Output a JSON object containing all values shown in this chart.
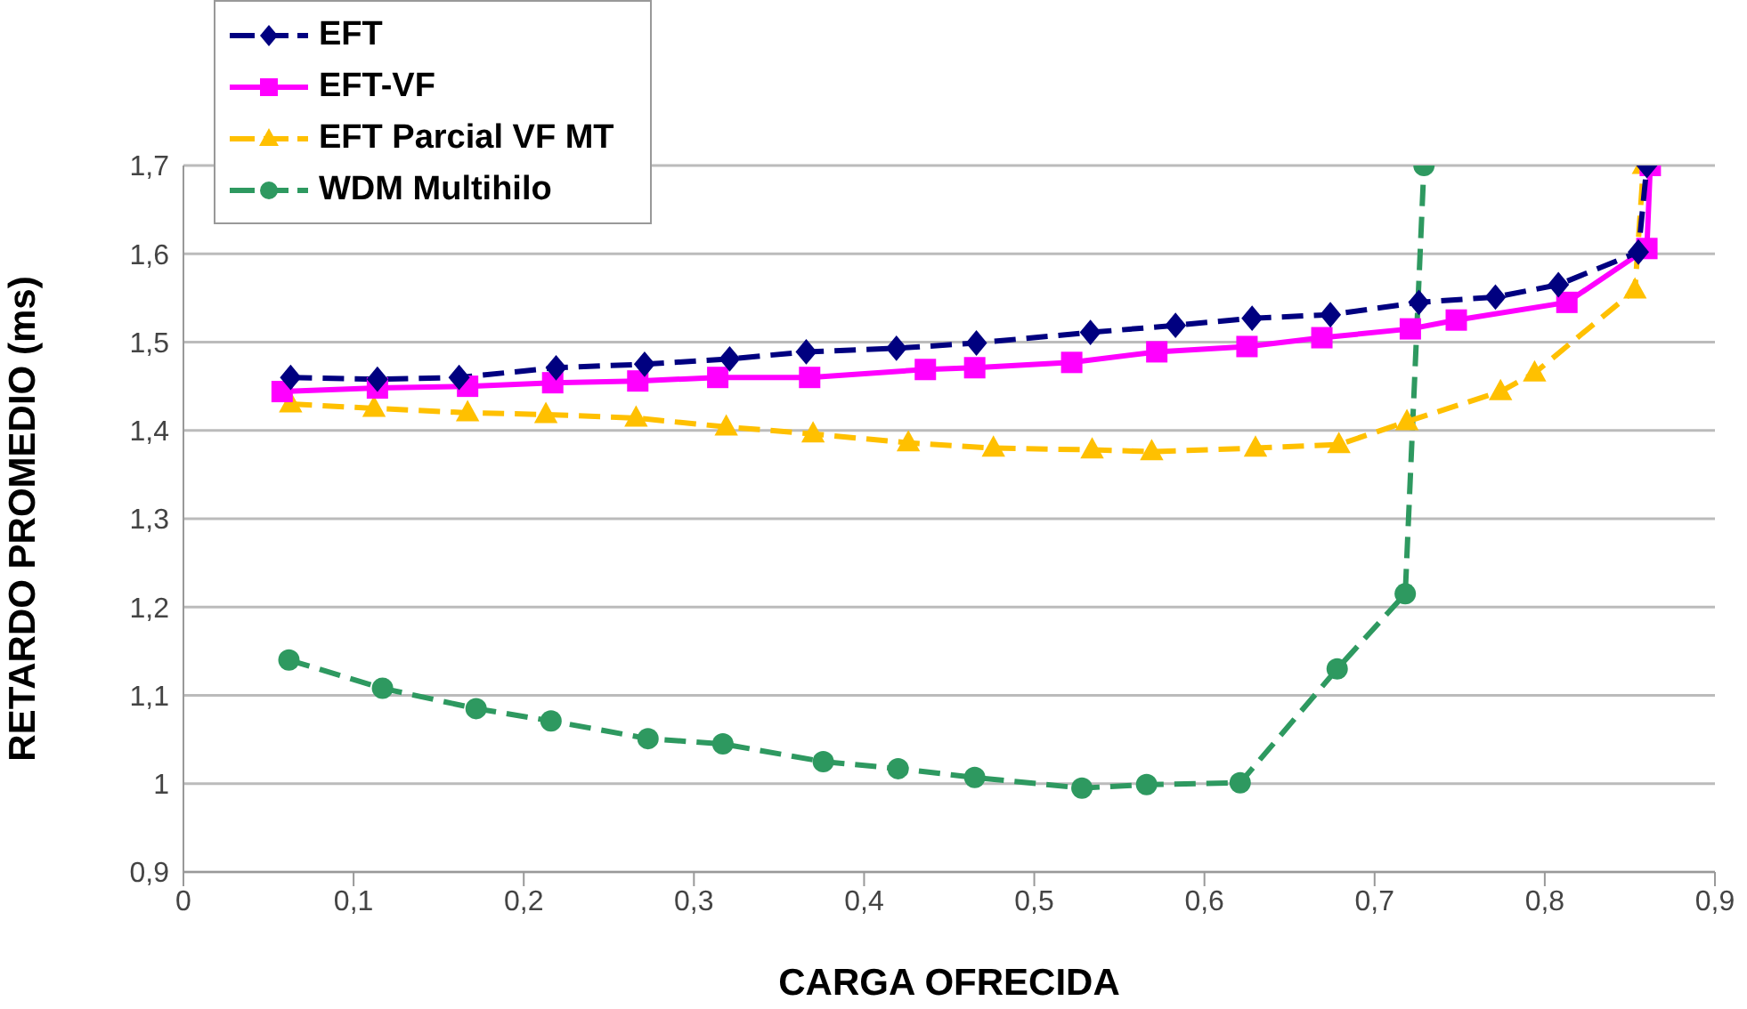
{
  "chart_data": {
    "type": "line",
    "xlabel": "CARGA OFRECIDA",
    "ylabel": "RETARDO PROMEDIO (ms)",
    "xlim": [
      0,
      0.9
    ],
    "xticks": [
      0,
      {
        "value": 0.1,
        "label": "0,1"
      },
      {
        "value": 0.2,
        "label": "0,2"
      },
      {
        "value": 0.3,
        "label": "0,3"
      },
      {
        "value": 0.4,
        "label": "0,4"
      },
      {
        "value": 0.5,
        "label": "0,5"
      },
      {
        "value": 0.6,
        "label": "0,6"
      },
      {
        "value": 0.7,
        "label": "0,7"
      },
      {
        "value": 0.8,
        "label": "0,8"
      },
      {
        "value": 0.9,
        "label": "0,9"
      }
    ],
    "ylim": [
      0.9,
      1.7
    ],
    "yticks": [
      {
        "value": 0.9,
        "label": "0,9"
      },
      1,
      {
        "value": 1.1,
        "label": "1,1"
      },
      {
        "value": 1.2,
        "label": "1,2"
      },
      {
        "value": 1.3,
        "label": "1,3"
      },
      {
        "value": 1.4,
        "label": "1,4"
      },
      {
        "value": 1.5,
        "label": "1,5"
      },
      {
        "value": 1.6,
        "label": "1,6"
      },
      {
        "value": 1.7,
        "label": "1,7"
      }
    ],
    "grid": "y",
    "legend": "top left",
    "series": [
      {
        "name": "EFT",
        "color": "#000080",
        "marker": "diamond",
        "line_style": "dashed",
        "x": [
          0.063,
          0.114,
          0.162,
          0.219,
          0.271,
          0.321,
          0.366,
          0.419,
          0.466,
          0.533,
          0.583,
          0.628,
          0.674,
          0.726,
          0.771,
          0.808,
          0.855,
          0.86
        ],
        "values": [
          1.46,
          1.458,
          1.46,
          1.471,
          1.475,
          1.481,
          1.489,
          1.493,
          1.499,
          1.511,
          1.519,
          1.527,
          1.531,
          1.545,
          1.551,
          1.565,
          1.602,
          1.7
        ]
      },
      {
        "name": "EFT-VF",
        "color": "#ff00ff",
        "marker": "square",
        "line_style": "solid",
        "x": [
          0.058,
          0.114,
          0.167,
          0.217,
          0.267,
          0.314,
          0.368,
          0.436,
          0.465,
          0.522,
          0.572,
          0.625,
          0.669,
          0.721,
          0.748,
          0.813,
          0.86,
          0.862
        ],
        "values": [
          1.444,
          1.448,
          1.45,
          1.454,
          1.456,
          1.46,
          1.46,
          1.469,
          1.471,
          1.477,
          1.489,
          1.495,
          1.505,
          1.515,
          1.525,
          1.545,
          1.606,
          1.7
        ]
      },
      {
        "name": "EFT Parcial VF MT",
        "color": "#ffc000",
        "marker": "triangle",
        "line_style": "dashed",
        "x": [
          0.063,
          0.112,
          0.167,
          0.213,
          0.266,
          0.319,
          0.37,
          0.426,
          0.476,
          0.534,
          0.569,
          0.63,
          0.679,
          0.719,
          0.774,
          0.794,
          0.853,
          0.858
        ],
        "values": [
          1.43,
          1.425,
          1.42,
          1.418,
          1.414,
          1.404,
          1.396,
          1.386,
          1.38,
          1.378,
          1.376,
          1.38,
          1.384,
          1.41,
          1.444,
          1.465,
          1.559,
          1.7
        ]
      },
      {
        "name": "WDM Multihilo",
        "color": "#2e9960",
        "marker": "circle",
        "line_style": "dashed",
        "x": [
          0.062,
          0.117,
          0.172,
          0.216,
          0.273,
          0.317,
          0.376,
          0.42,
          0.465,
          0.528,
          0.566,
          0.621,
          0.678,
          0.718,
          0.729
        ],
        "values": [
          1.14,
          1.108,
          1.085,
          1.071,
          1.051,
          1.045,
          1.025,
          1.017,
          1.007,
          0.995,
          0.999,
          1.001,
          1.13,
          1.215,
          1.7
        ]
      }
    ]
  }
}
